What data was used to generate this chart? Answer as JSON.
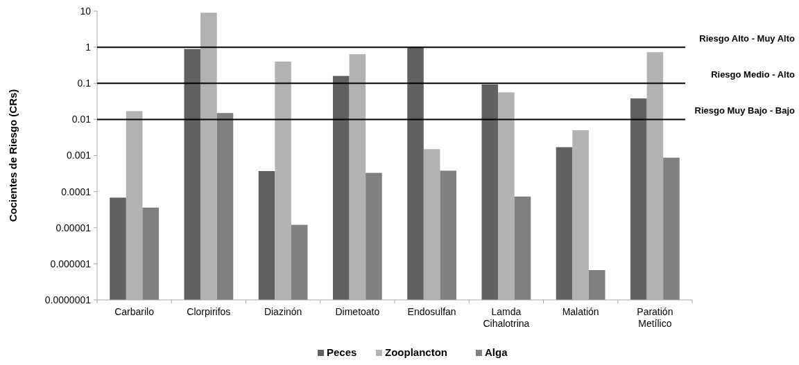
{
  "chart_data": {
    "type": "bar",
    "ylabel": "Cocientes de Riesgo (CRs)",
    "log": true,
    "categories": [
      "Carbarilo",
      "Clorpirifos",
      "Diazinón",
      "Dimetoato",
      "Endosulfan",
      "Lamda Cihalotrina",
      "Malatión",
      "Paratión Metílico"
    ],
    "series": [
      {
        "name": "Peces",
        "color": "#616161",
        "values": [
          6.8e-05,
          0.89,
          0.00037,
          0.16,
          1.0,
          0.093,
          0.0017,
          0.038
        ]
      },
      {
        "name": "Zooplancton",
        "color": "#b2b2b2",
        "values": [
          0.017,
          9,
          0.4,
          0.64,
          0.0015,
          0.056,
          0.005,
          0.73
        ]
      },
      {
        "name": "Alga",
        "color": "#808080",
        "values": [
          3.6e-05,
          0.015,
          1.2e-05,
          0.00033,
          0.00038,
          7.3e-05,
          6.7e-07,
          0.00087
        ]
      }
    ],
    "ylim": [
      1e-07,
      10
    ],
    "yticks": [
      {
        "value": 1e-07,
        "label": "0.0000001"
      },
      {
        "value": 1e-06,
        "label": "0.000001"
      },
      {
        "value": 1e-05,
        "label": "0.00001"
      },
      0.0001,
      0.001,
      0.01,
      0.1,
      1,
      10
    ],
    "ref_lines": [
      {
        "axis": "y",
        "value": 1,
        "label": "Riesgo Alto - Muy Alto",
        "color": "#000000"
      },
      {
        "axis": "y",
        "value": 0.1,
        "label": "Riesgo Medio - Alto",
        "color": "#000000"
      },
      {
        "axis": "y",
        "value": 0.01,
        "label": "Riesgo Muy Bajo - Bajo",
        "color": "#000000"
      }
    ],
    "grid": false,
    "legend": "bottom"
  }
}
